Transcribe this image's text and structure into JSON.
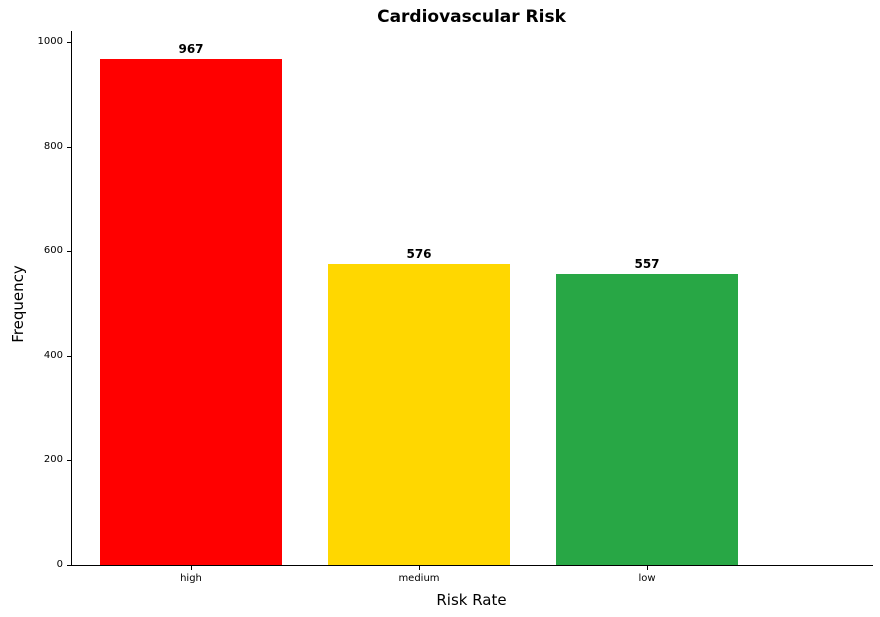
{
  "chart_data": {
    "type": "bar",
    "title": "Cardiovascular Risk",
    "xlabel": "Risk Rate",
    "ylabel": "Frequency",
    "categories": [
      "high",
      "medium",
      "low"
    ],
    "values": [
      967,
      576,
      557
    ],
    "value_labels": [
      "967",
      "576",
      "557"
    ],
    "bar_colors": [
      "#ff0000",
      "#ffd700",
      "#28a745"
    ],
    "yticks": [
      0,
      200,
      400,
      600,
      800,
      1000
    ],
    "ylim": [
      0,
      1021
    ],
    "grid": false,
    "legend": null,
    "spines_visible": [
      "left",
      "bottom"
    ]
  }
}
